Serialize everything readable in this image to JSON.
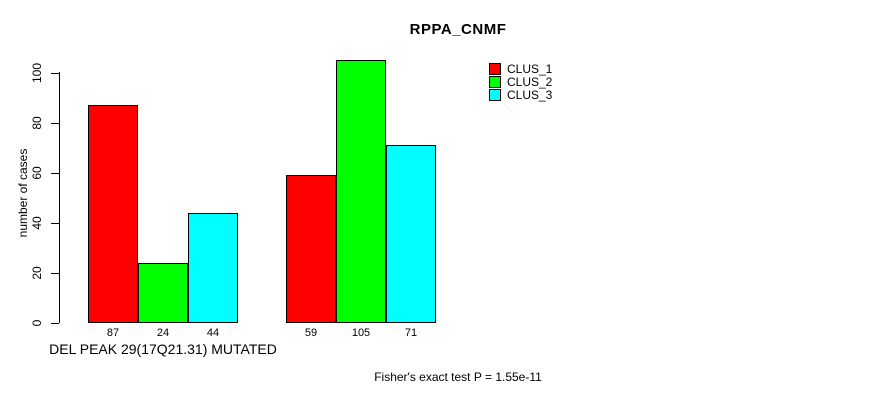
{
  "chart_data": {
    "type": "bar",
    "title": "RPPA_CNMF",
    "ylabel": "number of cases",
    "xlabel": "DEL PEAK 29(17Q21.31) MUTATED",
    "footnote": "Fisher's exact test P = 1.55e-11",
    "yticks": [
      0,
      20,
      40,
      60,
      80,
      100
    ],
    "ylim": [
      0,
      105
    ],
    "grid": false,
    "legend_position": "top-right",
    "value_labels_shown": true,
    "series": [
      {
        "name": "CLUS_1",
        "color": "#FF0000",
        "values": [
          87,
          59
        ]
      },
      {
        "name": "CLUS_2",
        "color": "#00FF00",
        "values": [
          24,
          105
        ]
      },
      {
        "name": "CLUS_3",
        "color": "#00FFFF",
        "values": [
          44,
          71
        ]
      }
    ]
  }
}
